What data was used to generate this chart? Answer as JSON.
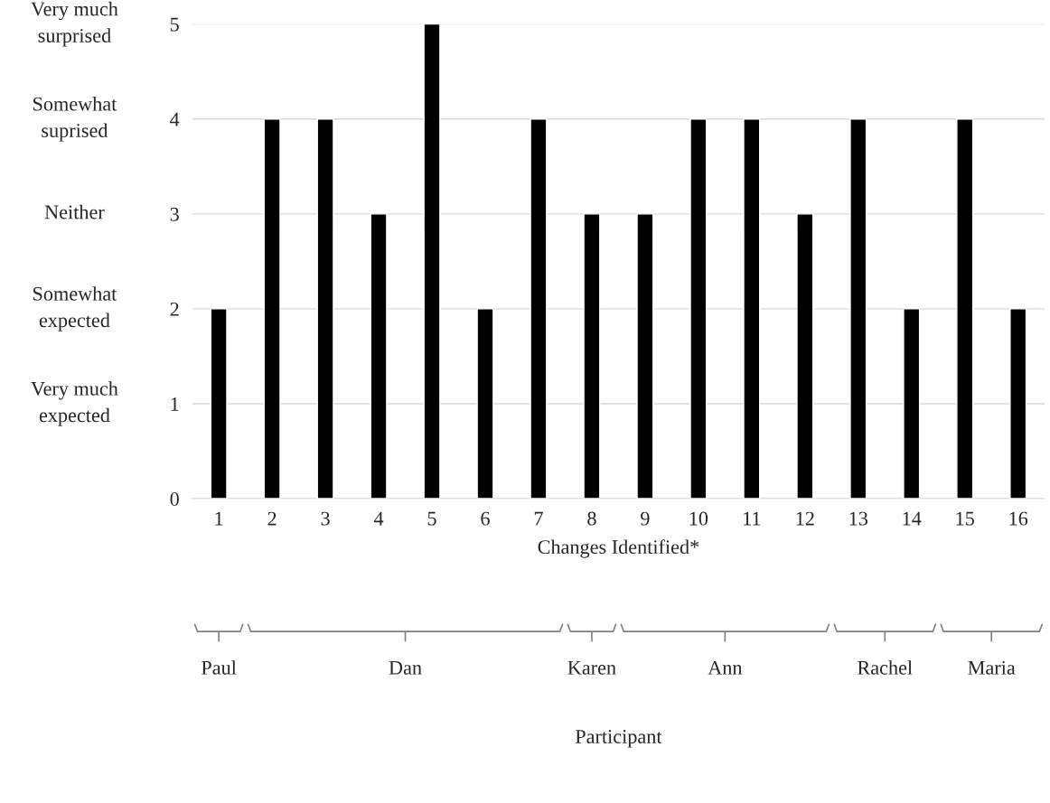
{
  "chart_data": {
    "type": "bar",
    "xlabel": "Changes Identified*",
    "categories": [
      "1",
      "2",
      "3",
      "4",
      "5",
      "6",
      "7",
      "8",
      "9",
      "10",
      "11",
      "12",
      "13",
      "14",
      "15",
      "16"
    ],
    "values": [
      2,
      4,
      4,
      3,
      5,
      2,
      4,
      3,
      3,
      4,
      4,
      3,
      4,
      2,
      4,
      2
    ],
    "color": "#000000",
    "ylim": [
      0,
      5
    ],
    "yticks": [
      0,
      1,
      2,
      3,
      4,
      5
    ],
    "grid": "y",
    "annotations": [
      "Very much\nexpected",
      "Somewhat\nexpected",
      "Neither",
      "Somewhat\nsuprised",
      "Very much\nsurprised",
      "Paul",
      "Dan",
      "Karen",
      "Ann",
      "Rachel",
      "Maria",
      "Participant"
    ]
  }
}
